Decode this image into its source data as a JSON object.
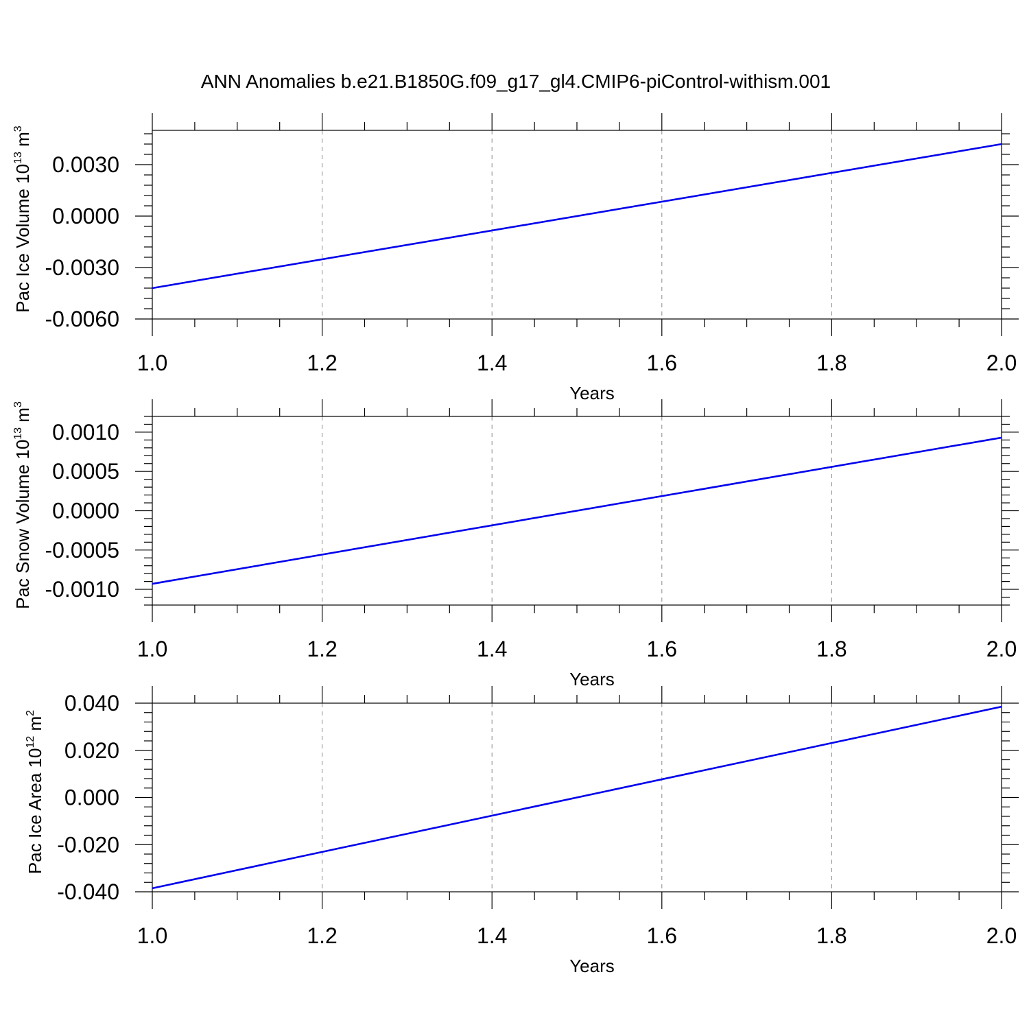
{
  "title": "ANN Anomalies b.e21.B1850G.f09_g17_gl4.CMIP6-piControl-withism.001",
  "chart_data": [
    {
      "type": "line",
      "title": "",
      "xlabel": "Years",
      "ylabel": {
        "prefix": "Pac Ice Volume 10",
        "exponent": "13",
        "mid": " m",
        "unit_exponent": "3"
      },
      "xlim": [
        1.0,
        2.0
      ],
      "ylim": [
        -0.006,
        0.005
      ],
      "xticks": [
        1.0,
        1.2,
        1.4,
        1.6,
        1.8,
        2.0
      ],
      "xtick_labels": [
        "1.0",
        "1.2",
        "1.4",
        "1.6",
        "1.8",
        "2.0"
      ],
      "yticks": [
        -0.006,
        -0.003,
        0.0,
        0.003
      ],
      "ytick_labels": [
        "-0.0060",
        "-0.0030",
        "0.0000",
        "0.0030"
      ],
      "grid": "x dashed",
      "series": [
        {
          "x": [
            1.0,
            2.0
          ],
          "y": [
            -0.0042,
            0.0042
          ],
          "color": "#0000ee"
        }
      ]
    },
    {
      "type": "line",
      "title": "",
      "xlabel": "Years",
      "ylabel": {
        "prefix": "Pac Snow Volume 10",
        "exponent": "13",
        "mid": " m",
        "unit_exponent": "3"
      },
      "xlim": [
        1.0,
        2.0
      ],
      "ylim": [
        -0.0012,
        0.0012
      ],
      "xticks": [
        1.0,
        1.2,
        1.4,
        1.6,
        1.8,
        2.0
      ],
      "xtick_labels": [
        "1.0",
        "1.2",
        "1.4",
        "1.6",
        "1.8",
        "2.0"
      ],
      "yticks": [
        -0.001,
        -0.0005,
        0.0,
        0.0005,
        0.001
      ],
      "ytick_labels": [
        "-0.0010",
        "-0.0005",
        "0.0000",
        "0.0005",
        "0.0010"
      ],
      "grid": "x dashed",
      "series": [
        {
          "x": [
            1.0,
            2.0
          ],
          "y": [
            -0.00093,
            0.00093
          ],
          "color": "#0000ee"
        }
      ]
    },
    {
      "type": "line",
      "title": "",
      "xlabel": "Years",
      "ylabel": {
        "prefix": "Pac Ice Area 10",
        "exponent": "12",
        "mid": " m",
        "unit_exponent": "2"
      },
      "xlim": [
        1.0,
        2.0
      ],
      "ylim": [
        -0.04,
        0.04
      ],
      "xticks": [
        1.0,
        1.2,
        1.4,
        1.6,
        1.8,
        2.0
      ],
      "xtick_labels": [
        "1.0",
        "1.2",
        "1.4",
        "1.6",
        "1.8",
        "2.0"
      ],
      "yticks": [
        -0.04,
        -0.02,
        0.0,
        0.02,
        0.04
      ],
      "ytick_labels": [
        "-0.040",
        "-0.020",
        "0.000",
        "0.020",
        "0.040"
      ],
      "grid": "x dashed",
      "series": [
        {
          "x": [
            1.0,
            2.0
          ],
          "y": [
            -0.0385,
            0.0385
          ],
          "color": "#0000ee"
        }
      ]
    }
  ]
}
